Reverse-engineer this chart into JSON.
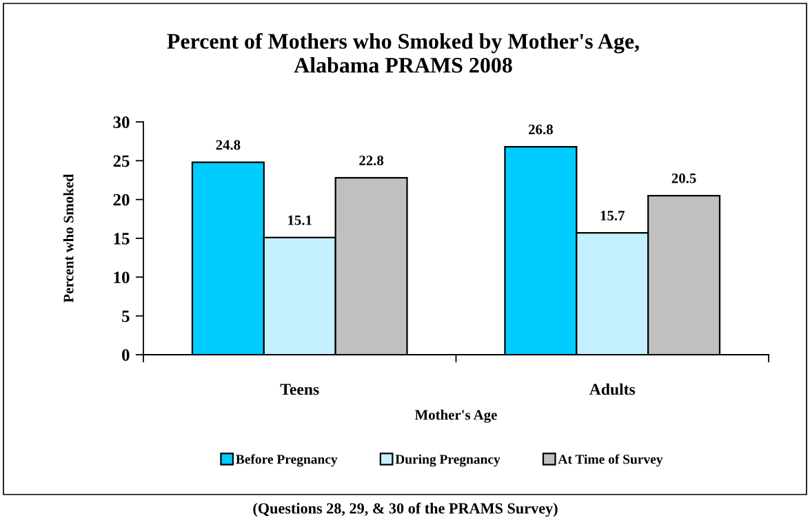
{
  "chart_data": {
    "type": "bar",
    "title": "Percent of Mothers who Smoked by Mother's Age,\nAlabama PRAMS 2008",
    "xlabel": "Mother's Age",
    "ylabel": "Percent who Smoked",
    "categories": [
      "Teens",
      "Adults"
    ],
    "series": [
      {
        "name": "Before Pregnancy",
        "color": "#00ccff",
        "values": [
          24.8,
          26.8
        ]
      },
      {
        "name": "During Pregnancy",
        "color": "#c4f0ff",
        "values": [
          15.1,
          15.7
        ]
      },
      {
        "name": "At Time of Survey",
        "color": "#c0c0c0",
        "values": [
          22.8,
          20.5
        ]
      }
    ],
    "ylim": [
      0,
      30
    ],
    "yticks": [
      0,
      5,
      10,
      15,
      20,
      25,
      30
    ],
    "data_labels": true,
    "legend": "bottom",
    "annotations": [
      "(Questions 28, 29, & 30 of the PRAMS Survey)"
    ]
  }
}
